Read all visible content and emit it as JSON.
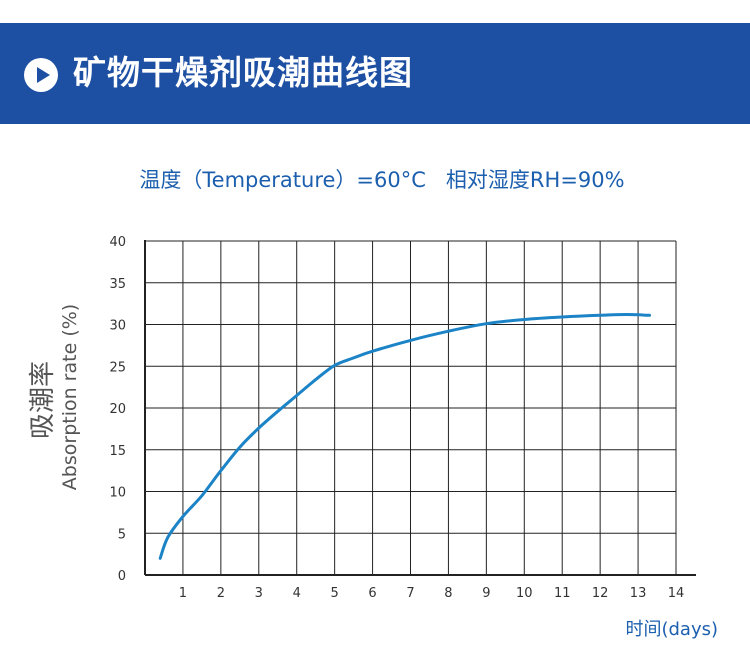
{
  "banner": {
    "title": "矿物干燥剂吸潮曲线图",
    "icon": "play-icon",
    "background_color": "#1d4fa3"
  },
  "chart_data": {
    "type": "line",
    "title": "温度（Temperature）=60°C   相对湿度RH=90%",
    "ylabel_cn": "吸潮率",
    "ylabel": "Absorption rate (%)",
    "xlabel": "时间(days)",
    "x_ticks": [
      1,
      2,
      3,
      4,
      5,
      6,
      7,
      8,
      9,
      10,
      11,
      12,
      13,
      14
    ],
    "y_ticks": [
      0,
      5,
      10,
      15,
      20,
      25,
      30,
      35,
      40
    ],
    "xlim": [
      0,
      14
    ],
    "ylim": [
      0,
      40
    ],
    "grid": true,
    "line_color": "#1c84c6",
    "text_color": "#1c5fae",
    "series": [
      {
        "x": [
          0.4,
          0.6,
          1.0,
          1.5,
          2.0,
          2.5,
          3.0,
          3.5,
          4.0,
          4.5,
          5.0,
          5.5,
          6.0,
          7.0,
          8.0,
          9.0,
          10.0,
          11.0,
          12.0,
          12.7,
          13.3
        ],
        "y": [
          2,
          4.5,
          7,
          9.5,
          12.5,
          15.3,
          17.6,
          19.6,
          21.5,
          23.4,
          25.1,
          26,
          26.8,
          28.1,
          29.2,
          30.1,
          30.6,
          30.9,
          31.1,
          31.2,
          31.1
        ]
      }
    ]
  }
}
